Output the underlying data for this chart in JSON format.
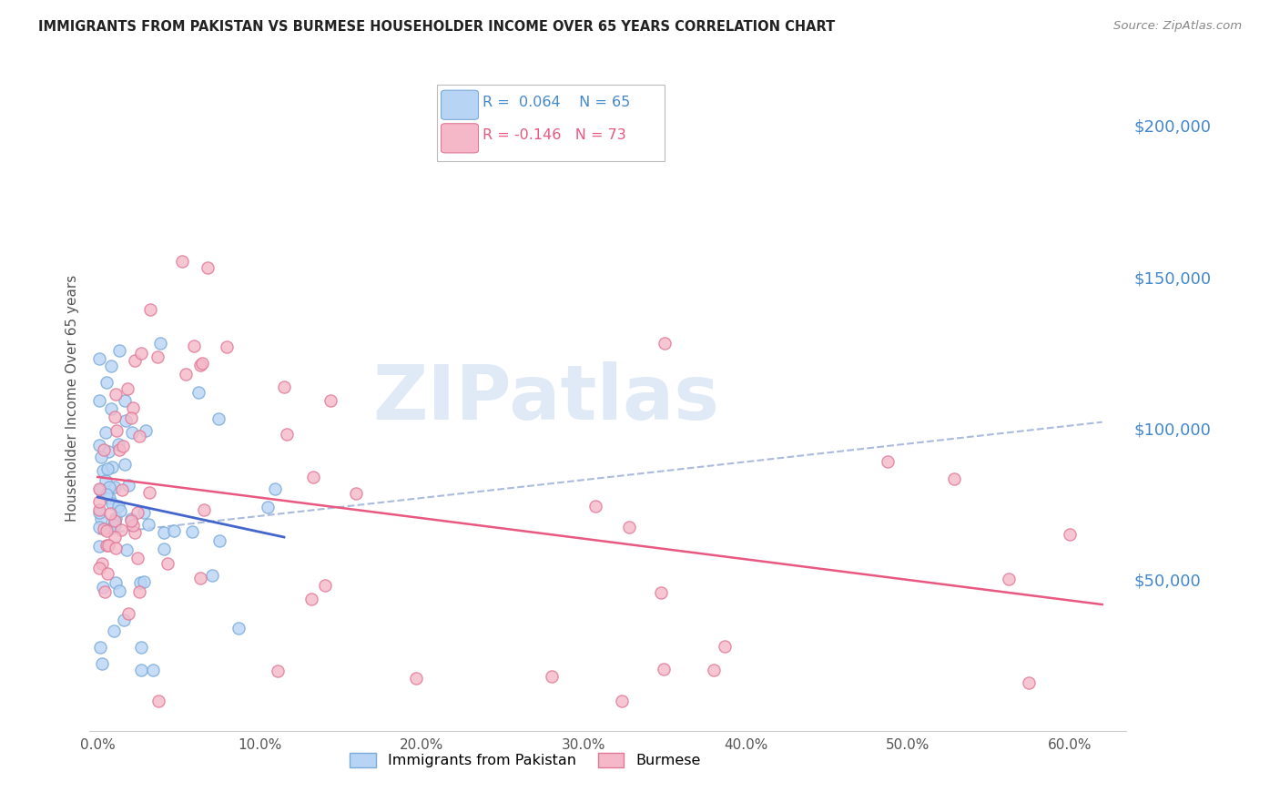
{
  "title": "IMMIGRANTS FROM PAKISTAN VS BURMESE HOUSEHOLDER INCOME OVER 65 YEARS CORRELATION CHART",
  "source": "Source: ZipAtlas.com",
  "ylabel": "Householder Income Over 65 years",
  "ytick_labels": [
    "$50,000",
    "$100,000",
    "$150,000",
    "$200,000"
  ],
  "ytick_vals": [
    50000,
    100000,
    150000,
    200000
  ],
  "ylim": [
    0,
    220000
  ],
  "xlim": [
    -0.005,
    0.635
  ],
  "pakistan_R": 0.064,
  "pakistan_N": 65,
  "burmese_R": -0.146,
  "burmese_N": 73,
  "pakistan_color": "#b8d4f5",
  "pakistan_edge": "#7aaad8",
  "burmese_color": "#f5b8c8",
  "burmese_edge": "#e07898",
  "pakistan_line_color": "#4466cc",
  "burmese_line_color": "#e85880",
  "dashed_line_color": "#aabbdd",
  "watermark_color": "#ccddf0",
  "legend_box_color": "#dddddd",
  "pakistan_label_color": "#4488cc",
  "burmese_label_color": "#e85880",
  "grid_color": "#cccccc",
  "axis_label_color": "#555555",
  "title_color": "#222222",
  "source_color": "#888888",
  "right_tick_color": "#4488cc",
  "bottom_spine_color": "#cccccc"
}
